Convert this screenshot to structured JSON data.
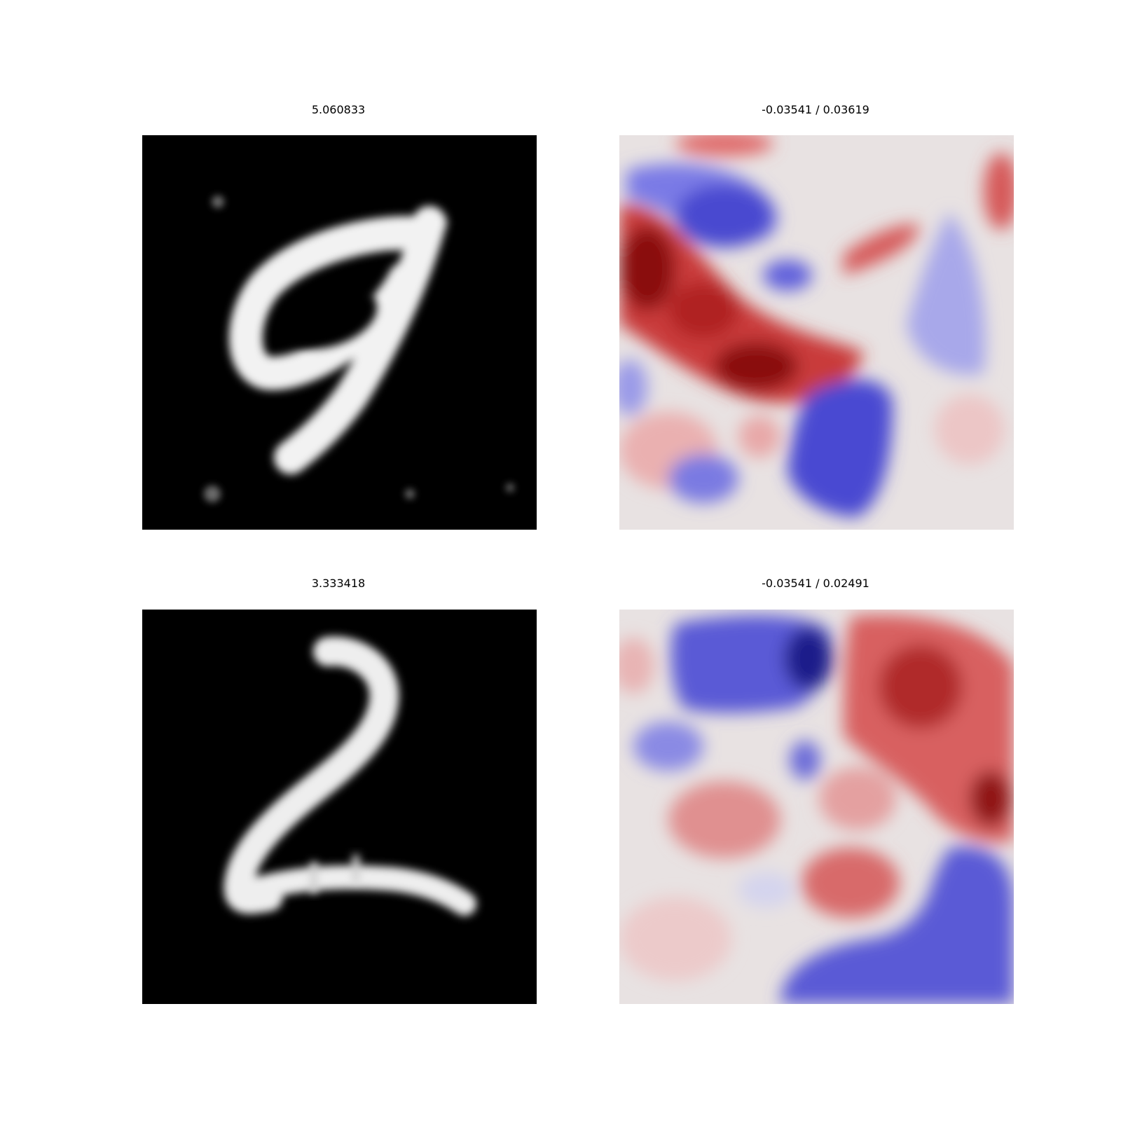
{
  "figure": {
    "panels": [
      {
        "title": "5.060833",
        "kind": "digit image",
        "depicts": "9",
        "colormap": "gray"
      },
      {
        "title": "-0.03541 / 0.03619",
        "kind": "attribution heatmap",
        "colormap": "seismic"
      },
      {
        "title": "3.333418",
        "kind": "digit image",
        "depicts": "2",
        "colormap": "gray"
      },
      {
        "title": "-0.03541 / 0.02491",
        "kind": "attribution heatmap",
        "colormap": "seismic"
      }
    ]
  },
  "colors": {
    "digit_background": "#000000",
    "digit_stroke": "#f2f2f2",
    "heat_neutral": "#e8e2e2",
    "heat_positive": "#d23c3c",
    "heat_positive_strong": "#7a0000",
    "heat_negative": "#5a5ad8",
    "heat_negative_strong": "#00005a"
  }
}
